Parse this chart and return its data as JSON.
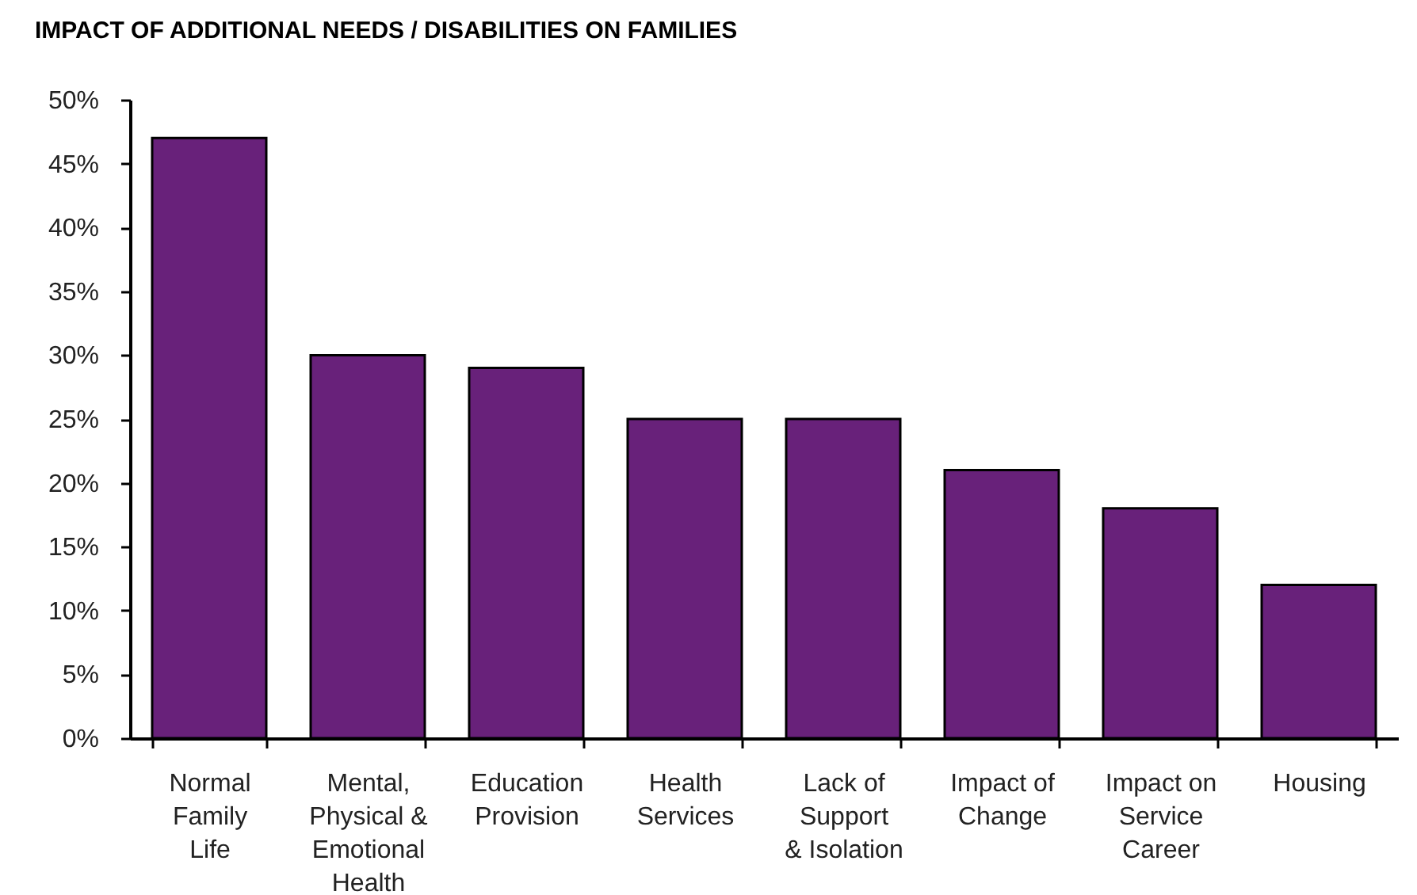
{
  "chart_data": {
    "type": "bar",
    "title": "IMPACT OF ADDITIONAL NEEDS / DISABILITIES ON FAMILIES",
    "categories": [
      "Normal\nFamily\nLife",
      "Mental,\nPhysical &\nEmotional\nHealth",
      "Education\nProvision",
      "Health\nServices",
      "Lack of\nSupport\n& Isolation",
      "Impact of\nChange",
      "Impact on\nService\nCareer",
      "Housing"
    ],
    "values": [
      47,
      30,
      29,
      25,
      25,
      21,
      18,
      12
    ],
    "color": "#68217a",
    "ylim": [
      0,
      50
    ],
    "yticks": [
      {
        "value": 0,
        "label": "0%"
      },
      {
        "value": 5,
        "label": "5%"
      },
      {
        "value": 10,
        "label": "10%"
      },
      {
        "value": 15,
        "label": "15%"
      },
      {
        "value": 20,
        "label": "20%"
      },
      {
        "value": 25,
        "label": "25%"
      },
      {
        "value": 30,
        "label": "30%"
      },
      {
        "value": 35,
        "label": "35%"
      },
      {
        "value": 40,
        "label": "40%"
      },
      {
        "value": 45,
        "label": "45%"
      },
      {
        "value": 50,
        "label": "50%"
      }
    ],
    "grid": false
  }
}
